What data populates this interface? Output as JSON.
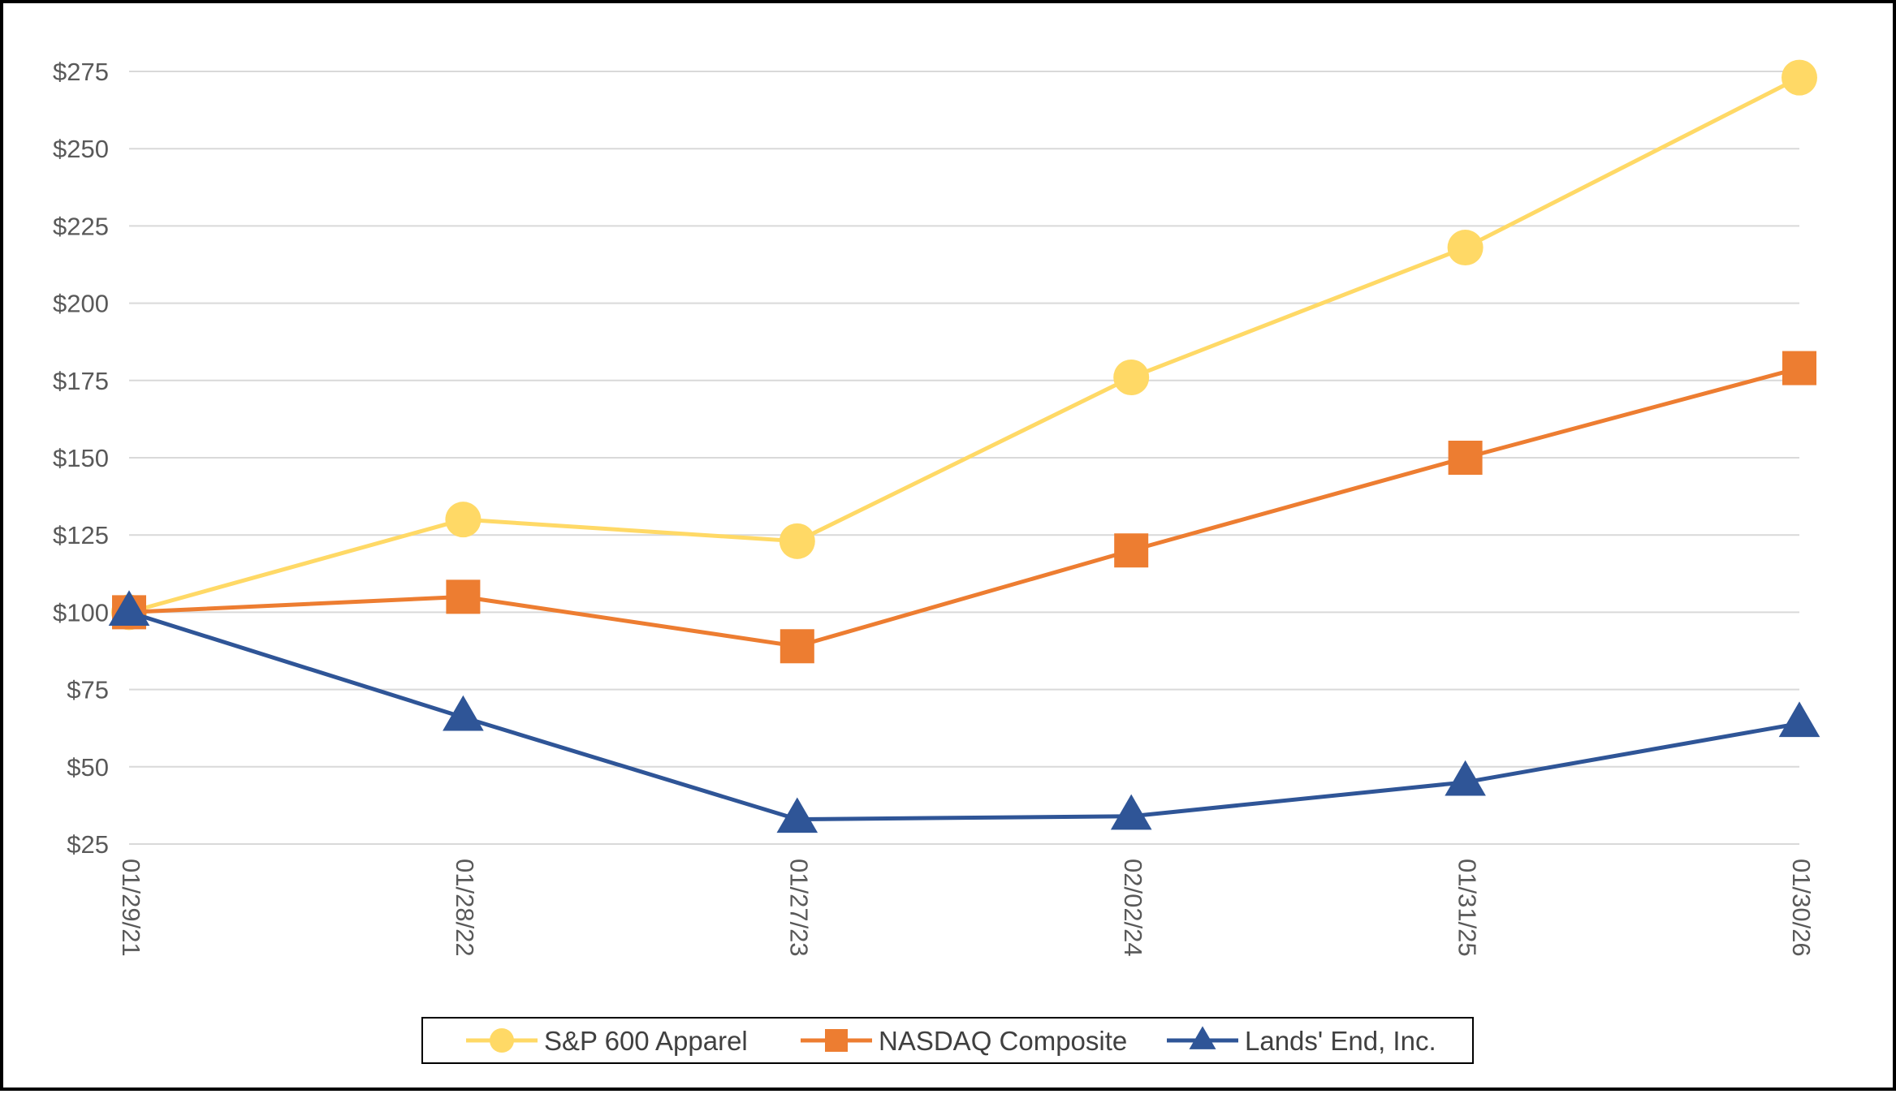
{
  "chart_data": {
    "type": "line",
    "title": "",
    "xlabel": "",
    "ylabel": "",
    "categories": [
      "01/29/21",
      "01/28/22",
      "01/27/23",
      "02/02/24",
      "01/31/25",
      "01/30/26"
    ],
    "ylim": [
      25,
      275
    ],
    "yticks": [
      25,
      50,
      75,
      100,
      125,
      150,
      175,
      200,
      225,
      250,
      275
    ],
    "ytick_labels": [
      "$25",
      "$50",
      "$75",
      "$100",
      "$125",
      "$150",
      "$175",
      "$200",
      "$225",
      "$250",
      "$275"
    ],
    "grid": true,
    "legend_position": "bottom",
    "series": [
      {
        "name": "S&P 600 Apparel",
        "values": [
          100,
          130,
          123,
          176,
          218,
          273
        ],
        "color": "#FFD966",
        "marker": "circle"
      },
      {
        "name": "NASDAQ Composite",
        "values": [
          100,
          105,
          89,
          120,
          150,
          179
        ],
        "color": "#ED7D31",
        "marker": "square"
      },
      {
        "name": "Lands' End, Inc.",
        "values": [
          100,
          66,
          33,
          34,
          45,
          64
        ],
        "color": "#2F5597",
        "marker": "triangle"
      }
    ]
  }
}
